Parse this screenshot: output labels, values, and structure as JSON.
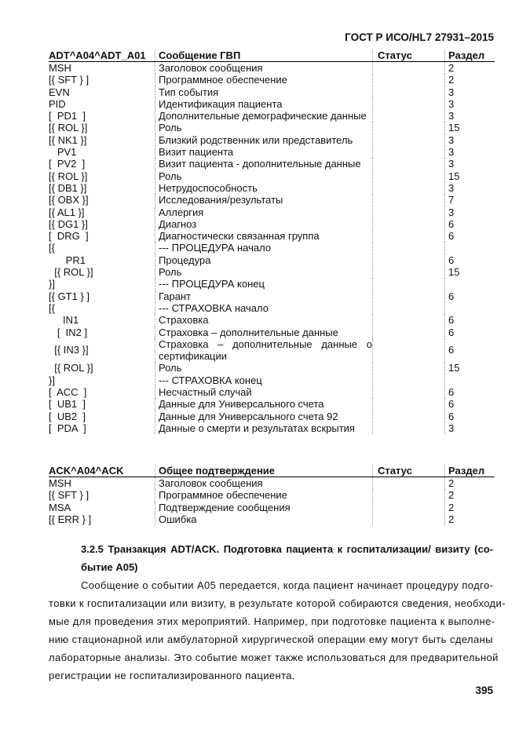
{
  "page_header": "ГОСТ Р ИСО/HL7 27931–2015",
  "table1": {
    "headers": [
      "ADT^A04^ADT_A01",
      "Сообщение ГВП",
      "Статус",
      "Раздел"
    ],
    "rows": [
      [
        "MSH",
        "Заголовок сообщения",
        "",
        "2"
      ],
      [
        "[{ SFT } ]",
        "Программное обеспечение",
        "",
        "2"
      ],
      [
        "EVN",
        "Тип события",
        "",
        "3"
      ],
      [
        "PID",
        "Идентификация пациента",
        "",
        "3"
      ],
      [
        "[  PD1  ]",
        "Дополнительные демографические данные",
        "",
        "3"
      ],
      [
        "[{ ROL }]",
        "Роль",
        "",
        "15"
      ],
      [
        "[{ NK1 }]",
        "Близкий родственник или представитель",
        "",
        "3"
      ],
      [
        "   PV1",
        "Визит пациента",
        "",
        "3"
      ],
      [
        "[  PV2  ]",
        "Визит пациента - дополнительные данные",
        "",
        "3"
      ],
      [
        "[{ ROL }]",
        "Роль",
        "",
        "15"
      ],
      [
        "[{ DB1 }]",
        "Нетрудоспособность",
        "",
        "3"
      ],
      [
        "[{ OBX }]",
        "Исследования/результаты",
        "",
        "7"
      ],
      [
        "[{ AL1 }]",
        "Аллергия",
        "",
        "3"
      ],
      [
        "[{ DG1 }]",
        "Диагноз",
        "",
        "6"
      ],
      [
        "[  DRG  ]",
        "Диагностически связанная группа",
        "",
        "6"
      ],
      [
        "[{",
        "--- ПРОЦЕДУРА начало",
        "",
        ""
      ],
      [
        "      PR1",
        "Процедура",
        "",
        "6"
      ],
      [
        "  [{ ROL }]",
        "Роль",
        "",
        "15"
      ],
      [
        "}]",
        "--- ПРОЦЕДУРА конец",
        "",
        ""
      ],
      [
        "[{ GT1 } ]",
        "Гарант",
        "",
        "6"
      ],
      [
        "[{",
        "--- СТРАХОВКА начало",
        "",
        ""
      ],
      [
        "     IN1",
        "Страховка",
        "",
        "6"
      ],
      [
        "   [  IN2 ]",
        "Страховка – дополнительные данные",
        "",
        "6"
      ],
      [
        "  [{ IN3 }]",
        "Страховка – дополнительные данные о сертификации",
        "",
        "6"
      ],
      [
        "  [{ ROL }]",
        "Роль",
        "",
        "15"
      ],
      [
        "}]",
        "--- СТРАХОВКА конец",
        "",
        ""
      ],
      [
        "[  ACC  ]",
        "Несчастный случай",
        "",
        "6"
      ],
      [
        "[  UB1  ]",
        "Данные для Универсального счета",
        "",
        "6"
      ],
      [
        "[  UB2  ]",
        "Данные для Универсального счета 92",
        "",
        "6"
      ],
      [
        "[  PDA  ]",
        "Данные о смерти и результатах вскрытия",
        "",
        "3"
      ]
    ]
  },
  "table2": {
    "headers": [
      "ACK^A04^ACK",
      "Общее подтверждение",
      "Статус",
      "Раздел"
    ],
    "rows": [
      [
        "MSH",
        "Заголовок сообщения",
        "",
        "2"
      ],
      [
        "[{ SFT } ]",
        "Программное обеспечение",
        "",
        "2"
      ],
      [
        "MSA",
        "Подтверждение сообщения",
        "",
        "2"
      ],
      [
        "[{ ERR } ]",
        "Ошибка",
        "",
        "2"
      ]
    ]
  },
  "section": {
    "heading_lines": [
      "3.2.5 Транзакция ADT/ACK. Подготовка пациента к госпитализации/ визиту (со-",
      "бытие A05)"
    ],
    "paragraph_lines": [
      "Сообщение о событии A05 передается, когда пациент начинает процедуру подго-",
      "товки к госпитализации или визиту, в результате которой собираются сведения, необходи-",
      "мые для проведения этих мероприятий. Например, при подготовке пациента к выполне-",
      "нию стационарной или амбулаторной хирургической операции ему могут быть сделаны",
      "лабораторные анализы. Это событие может также использоваться для предварительной",
      "регистрации не госпитализированного пациента."
    ]
  },
  "page_number": "395"
}
